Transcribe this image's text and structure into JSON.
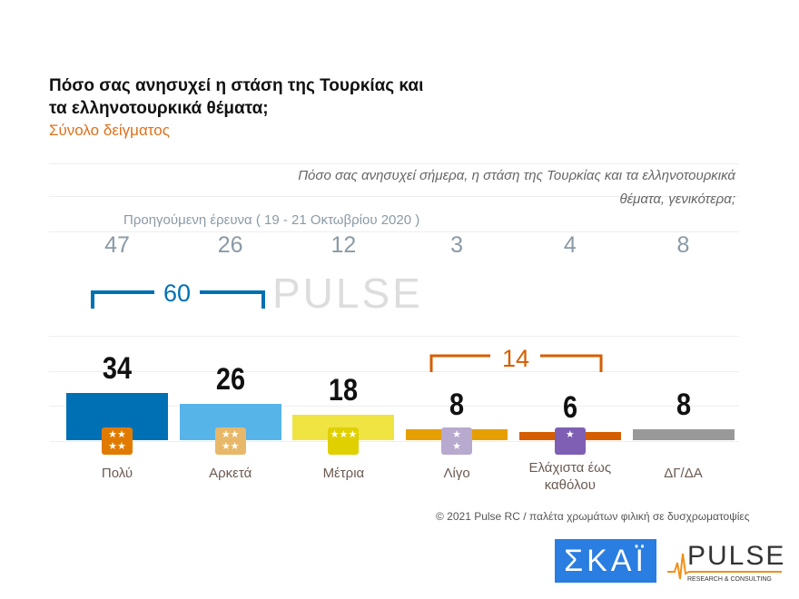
{
  "chart_data": {
    "type": "bar",
    "title": "Πόσο σας ανησυχεί η στάση της Τουρκίας και τα ελληνοτουρκικά θέματα;",
    "subtitle": "Σύνολο δείγματος",
    "question": "Πόσο σας ανησυχεί σήμερα, η στάση της Τουρκίας και τα ελληνοτουρκικά θέματα, γενικότερα;",
    "categories": [
      "Πολύ",
      "Αρκετά",
      "Μέτρια",
      "Λίγο",
      "Ελάχιστα έως καθόλου",
      "ΔΓ/ΔΑ"
    ],
    "values": [
      34,
      26,
      18,
      8,
      6,
      8
    ],
    "previous_label": "Προηγούμενη έρευνα  ( 19 - 21 Οκτωβρίου 2020 )",
    "previous_values": [
      47,
      26,
      12,
      3,
      4,
      8
    ],
    "colors": [
      "#0070b4",
      "#56b4e9",
      "#f0e442",
      "#e69f00",
      "#d55e00",
      "#999999"
    ],
    "badge_colors": [
      "#e07b00",
      "#e8b86a",
      "#e0d000",
      "#b8a9cf",
      "#7e5fb3"
    ],
    "groups": [
      {
        "label": "60",
        "color": "#0070b4"
      },
      {
        "label": "14",
        "color": "#d55e00"
      }
    ],
    "ylim": [
      0,
      50
    ],
    "grid": true
  },
  "footer": {
    "copyright": "© 2021 Pulse RC   /   παλέτα χρωμάτων φιλική σε δυσχρωματοψίες"
  },
  "logos": {
    "skai": "ΣΚΑΪ",
    "pulse": "PULSE",
    "pulse_sub": "RESEARCH & CONSULTING"
  }
}
